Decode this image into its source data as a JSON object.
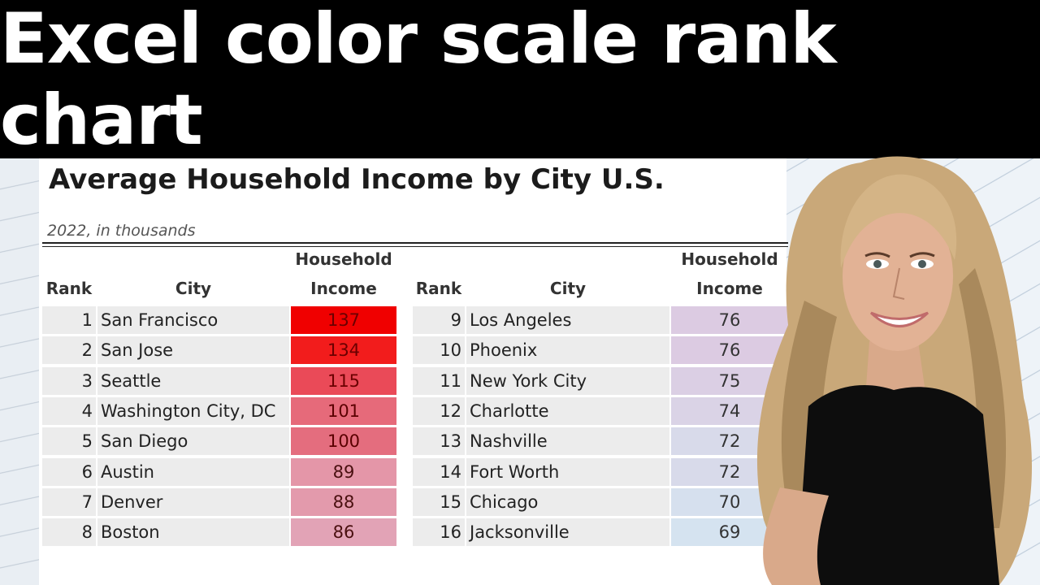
{
  "banner": {
    "title": "Excel color scale rank chart"
  },
  "sheet": {
    "title": "Average Household Income by City U.S.",
    "subtitle": "2022, in thousands",
    "headers": {
      "rank": "Rank",
      "city": "City",
      "income_line1": "Household",
      "income_line2": "Income"
    },
    "rows": [
      {
        "rank": "1",
        "city": "San Francisco",
        "income": "137",
        "color": "#f00000",
        "text_color": "#6b0000"
      },
      {
        "rank": "2",
        "city": "San Jose",
        "income": "134",
        "color": "#f21c1c",
        "text_color": "#6b0000"
      },
      {
        "rank": "3",
        "city": "Seattle",
        "income": "115",
        "color": "#ea4a58",
        "text_color": "#6b0000"
      },
      {
        "rank": "4",
        "city": "Washington City, DC",
        "income": "101",
        "color": "#e66a7a",
        "text_color": "#5a0000"
      },
      {
        "rank": "5",
        "city": "San Diego",
        "income": "100",
        "color": "#e46d7e",
        "text_color": "#5a0000"
      },
      {
        "rank": "6",
        "city": "Austin",
        "income": "89",
        "color": "#e496a8",
        "text_color": "#4a1010"
      },
      {
        "rank": "7",
        "city": "Denver",
        "income": "88",
        "color": "#e39aac",
        "text_color": "#4a1010"
      },
      {
        "rank": "8",
        "city": "Boston",
        "income": "86",
        "color": "#e2a3b6",
        "text_color": "#4a1010"
      },
      {
        "rank": "9",
        "city": "Los Angeles",
        "income": "76",
        "color": "#dccbe2",
        "text_color": "#333333"
      },
      {
        "rank": "10",
        "city": "Phoenix",
        "income": "76",
        "color": "#dccbe2",
        "text_color": "#333333"
      },
      {
        "rank": "11",
        "city": "New York City",
        "income": "75",
        "color": "#dbcfe4",
        "text_color": "#333333"
      },
      {
        "rank": "12",
        "city": "Charlotte",
        "income": "74",
        "color": "#dad3e6",
        "text_color": "#333333"
      },
      {
        "rank": "13",
        "city": "Nashville",
        "income": "72",
        "color": "#d8daea",
        "text_color": "#333333"
      },
      {
        "rank": "14",
        "city": "Fort Worth",
        "income": "72",
        "color": "#d8daea",
        "text_color": "#333333"
      },
      {
        "rank": "15",
        "city": "Chicago",
        "income": "70",
        "color": "#d6e0ee",
        "text_color": "#333333"
      },
      {
        "rank": "16",
        "city": "Jacksonville",
        "income": "69",
        "color": "#d5e3f0",
        "text_color": "#333333"
      }
    ]
  },
  "colors": {
    "banner_bg": "#000000",
    "banner_text": "#ffffff",
    "cell_bg": "#ececec"
  }
}
